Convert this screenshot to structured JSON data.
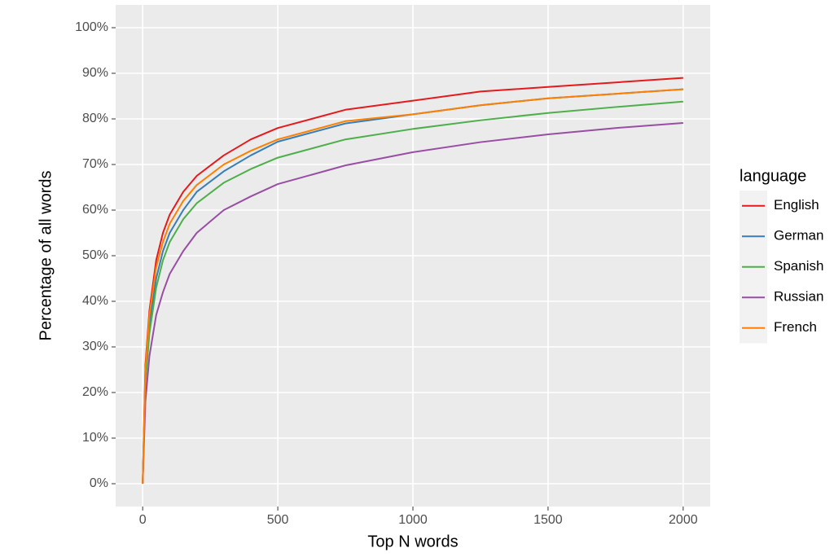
{
  "chart_data": {
    "type": "line",
    "xlabel": "Top N words",
    "ylabel": "Percentage of all words",
    "x": [
      0,
      10,
      25,
      50,
      75,
      100,
      150,
      200,
      300,
      400,
      500,
      750,
      1000,
      1250,
      1500,
      1750,
      2000
    ],
    "series": [
      {
        "name": "English",
        "color": "#e41a1c",
        "values": [
          0,
          26,
          38,
          49,
          55,
          59,
          64,
          67.5,
          72,
          75.5,
          78,
          82,
          84,
          86,
          87,
          88,
          89
        ]
      },
      {
        "name": "German",
        "color": "#377eb8",
        "values": [
          0,
          23,
          35,
          45,
          51,
          55,
          60,
          64,
          68.5,
          72,
          75,
          79,
          81,
          83,
          84.5,
          85.5,
          86.5
        ]
      },
      {
        "name": "Spanish",
        "color": "#4daf4a",
        "values": [
          0,
          22,
          33,
          43,
          49,
          53,
          58,
          61.5,
          66,
          69,
          71.5,
          75.5,
          77.8,
          79.7,
          81.3,
          82.6,
          83.8
        ]
      },
      {
        "name": "Russian",
        "color": "#984ea3",
        "values": [
          0,
          18,
          28,
          37,
          42,
          46,
          51,
          55,
          60,
          63,
          65.7,
          69.8,
          72.7,
          74.9,
          76.6,
          78,
          79.1
        ]
      },
      {
        "name": "French",
        "color": "#ff7f00",
        "values": [
          0,
          25,
          37,
          47.5,
          53,
          57,
          62,
          65.5,
          70,
          73,
          75.5,
          79.5,
          81,
          83,
          84.5,
          85.5,
          86.5
        ]
      }
    ],
    "xlim": [
      -100,
      2100
    ],
    "ylim": [
      -5,
      105
    ],
    "xticks": [
      0,
      500,
      1000,
      1500,
      2000
    ],
    "yticks": [
      {
        "value": 0,
        "label": "0%"
      },
      {
        "value": 10,
        "label": "10%"
      },
      {
        "value": 20,
        "label": "20%"
      },
      {
        "value": 30,
        "label": "30%"
      },
      {
        "value": 40,
        "label": "40%"
      },
      {
        "value": 50,
        "label": "50%"
      },
      {
        "value": 60,
        "label": "60%"
      },
      {
        "value": 70,
        "label": "70%"
      },
      {
        "value": 80,
        "label": "80%"
      },
      {
        "value": 90,
        "label": "90%"
      },
      {
        "value": 100,
        "label": "100%"
      }
    ],
    "grid": true,
    "legend_title": "language",
    "legend": "right"
  }
}
